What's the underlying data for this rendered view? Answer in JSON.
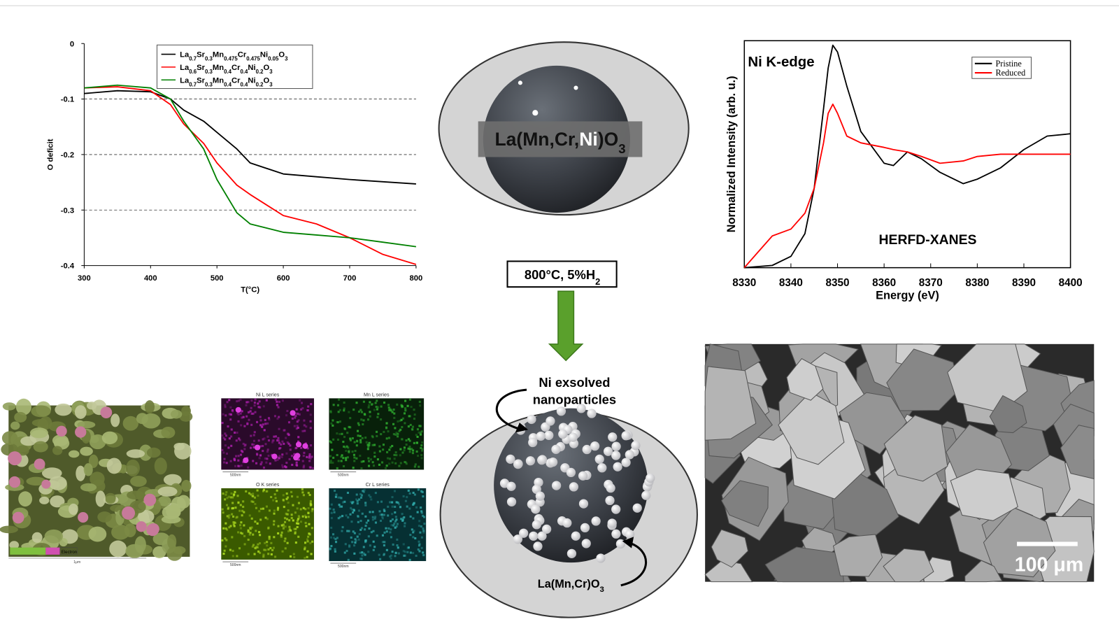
{
  "chart_data": [
    {
      "type": "line",
      "xlabel": "T(°C)",
      "ylabel": "O deficit",
      "xlim": [
        300,
        800
      ],
      "ylim": [
        -0.4,
        0
      ],
      "xticks": [
        300,
        400,
        500,
        600,
        700,
        800
      ],
      "yticks": [
        0,
        -0.1,
        -0.2,
        -0.3,
        -0.4
      ],
      "grid": true,
      "legend": "top",
      "x": [
        300,
        350,
        400,
        430,
        450,
        480,
        500,
        530,
        550,
        600,
        650,
        700,
        750,
        800
      ],
      "series": [
        {
          "name": "La0.7Sr0.3Mn0.475Cr0.475Ni0.05O3",
          "color": "#000000",
          "values": [
            -0.09,
            -0.085,
            -0.087,
            -0.1,
            -0.12,
            -0.14,
            -0.16,
            -0.19,
            -0.215,
            -0.235,
            -0.24,
            -0.245,
            -0.249,
            -0.253
          ]
        },
        {
          "name": "La0.6Sr0.3Mn0.4Cr0.4Ni0.2O3",
          "color": "#ff0000",
          "values": [
            -0.08,
            -0.078,
            -0.085,
            -0.11,
            -0.145,
            -0.18,
            -0.215,
            -0.255,
            -0.272,
            -0.31,
            -0.325,
            -0.35,
            -0.38,
            -0.398
          ]
        },
        {
          "name": "La0.7Sr0.3Mn0.4Cr0.4Ni0.2O3",
          "color": "#008000",
          "values": [
            -0.08,
            -0.075,
            -0.08,
            -0.1,
            -0.14,
            -0.19,
            -0.245,
            -0.305,
            -0.325,
            -0.34,
            -0.345,
            -0.35,
            -0.358,
            -0.366
          ]
        }
      ]
    },
    {
      "type": "line",
      "xlabel": "Energy (eV)",
      "ylabel": "Normalized Intensity (arb. u.)",
      "xlim": [
        8330,
        8400
      ],
      "ylim": [
        0,
        1
      ],
      "xticks": [
        8330,
        8340,
        8350,
        8360,
        8370,
        8380,
        8390,
        8400
      ],
      "legend": "upper-right",
      "annotations": [
        "Ni K-edge",
        "HERFD-XANES"
      ],
      "x": [
        8330,
        8333,
        8336,
        8340,
        8343,
        8345,
        8347,
        8348,
        8349,
        8350,
        8352,
        8355,
        8360,
        8362,
        8365,
        8368,
        8372,
        8377,
        8380,
        8385,
        8390,
        8395,
        8400
      ],
      "series": [
        {
          "name": "Pristine",
          "color": "#000000",
          "values": [
            0,
            0.005,
            0.01,
            0.05,
            0.15,
            0.35,
            0.7,
            0.88,
            0.98,
            0.95,
            0.8,
            0.6,
            0.46,
            0.45,
            0.51,
            0.48,
            0.42,
            0.37,
            0.39,
            0.44,
            0.52,
            0.58,
            0.59
          ]
        },
        {
          "name": "Reduced",
          "color": "#ff0000",
          "values": [
            0,
            0.07,
            0.14,
            0.17,
            0.24,
            0.35,
            0.55,
            0.68,
            0.72,
            0.68,
            0.58,
            0.55,
            0.53,
            0.52,
            0.51,
            0.49,
            0.46,
            0.47,
            0.49,
            0.5,
            0.5,
            0.5,
            0.5
          ]
        }
      ]
    }
  ],
  "diagram": {
    "pristine_label_parts": [
      "La(Mn,Cr,",
      "Ni",
      ")O3"
    ],
    "condition": "800°C, 5%H2",
    "exsolved_label": [
      "Ni exsolved",
      "nanoparticles"
    ],
    "support_label": "La(Mn,Cr)O3"
  },
  "eds": {
    "overlay_legend": "Electron",
    "overlay_scale": "1μm",
    "maps": [
      {
        "title": "Ni L series",
        "scale": "500nm"
      },
      {
        "title": "Mn L series",
        "scale": "500nm"
      },
      {
        "title": "O K series",
        "scale": "500nm"
      },
      {
        "title": "Cr L series",
        "scale": "500nm"
      }
    ]
  },
  "sem": {
    "scale_bar": "100 μm"
  }
}
